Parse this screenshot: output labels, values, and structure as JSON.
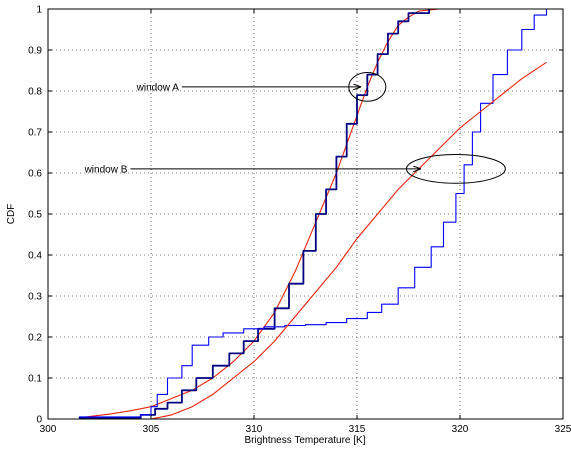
{
  "chart_data": {
    "type": "line",
    "title": "",
    "xlabel": "Brightness Temperature [K]",
    "ylabel": "CDF",
    "xlim": [
      300,
      325
    ],
    "ylim": [
      0,
      1
    ],
    "x_ticks": [
      300,
      305,
      310,
      315,
      320,
      325
    ],
    "y_ticks": [
      0,
      0.1,
      0.2,
      0.3,
      0.4,
      0.5,
      0.6,
      0.7,
      0.8,
      0.9,
      1
    ],
    "x_tick_labels": [
      "300",
      "305",
      "310",
      "315",
      "320",
      "325"
    ],
    "y_tick_labels": [
      "0",
      "0.1",
      "0.2",
      "0.3",
      "0.4",
      "0.5",
      "0.6",
      "0.7",
      "0.8",
      "0.9",
      "1"
    ],
    "grid": true,
    "colors": {
      "dark_blue": "#000080",
      "blue": "#0000ff",
      "red": "#e8220a"
    },
    "series": [
      {
        "color": "#e8220a",
        "style": "smooth",
        "x": [
          301.5,
          303,
          304,
          305,
          306,
          307,
          308,
          309,
          310,
          311,
          312,
          313,
          313.5,
          314,
          314.5,
          315,
          315.5,
          316,
          316.5,
          317,
          317.5,
          318,
          319
        ],
        "y": [
          0.003,
          0.012,
          0.02,
          0.03,
          0.05,
          0.07,
          0.1,
          0.14,
          0.19,
          0.26,
          0.36,
          0.48,
          0.54,
          0.6,
          0.67,
          0.74,
          0.81,
          0.87,
          0.92,
          0.96,
          0.98,
          0.995,
          1.0
        ]
      },
      {
        "color": "#000080",
        "style": "step",
        "x": [
          301.5,
          304.5,
          305.2,
          305.8,
          306.5,
          307.2,
          308,
          308.8,
          309.5,
          310.2,
          311,
          311.7,
          312.4,
          313,
          313.5,
          314,
          314.5,
          315,
          315.5,
          316,
          316.5,
          317,
          317.5,
          318.5
        ],
        "y": [
          0.003,
          0.01,
          0.025,
          0.04,
          0.07,
          0.1,
          0.13,
          0.16,
          0.19,
          0.22,
          0.27,
          0.33,
          0.41,
          0.5,
          0.56,
          0.64,
          0.72,
          0.79,
          0.84,
          0.89,
          0.94,
          0.97,
          0.99,
          1.0
        ]
      },
      {
        "color": "#0000ff",
        "style": "step",
        "x": [
          301.5,
          304.5,
          305,
          305.3,
          305.8,
          306.5,
          307,
          307.8,
          308.5,
          309.5,
          310.5,
          311.5,
          312.5,
          313.5,
          314.5,
          315.5,
          316.2,
          317,
          317.8,
          318.6,
          319.2,
          319.8,
          320.2,
          320.6,
          321,
          321.6,
          322.3,
          323,
          323.6,
          324.2
        ],
        "y": [
          0.005,
          0.01,
          0.03,
          0.06,
          0.1,
          0.13,
          0.18,
          0.2,
          0.21,
          0.22,
          0.225,
          0.228,
          0.23,
          0.235,
          0.245,
          0.26,
          0.28,
          0.32,
          0.37,
          0.42,
          0.48,
          0.55,
          0.62,
          0.7,
          0.77,
          0.84,
          0.9,
          0.95,
          0.985,
          1.0
        ]
      },
      {
        "color": "#e8220a",
        "style": "smooth",
        "x": [
          305,
          306,
          307,
          308,
          309,
          310,
          311,
          312,
          313,
          314,
          315,
          316,
          317,
          318,
          319,
          320,
          321,
          322,
          323,
          324.2
        ],
        "y": [
          0.0,
          0.01,
          0.03,
          0.06,
          0.1,
          0.14,
          0.19,
          0.25,
          0.31,
          0.37,
          0.44,
          0.5,
          0.56,
          0.61,
          0.66,
          0.71,
          0.75,
          0.79,
          0.83,
          0.87
        ]
      }
    ],
    "annotations": [
      {
        "text": "window A",
        "from": [
          306.5,
          0.81
        ],
        "to": [
          315.2,
          0.81
        ],
        "ellipse": {
          "cx": 315.5,
          "cy": 0.81,
          "rx": 0.9,
          "ry": 0.035
        }
      },
      {
        "text": "window B",
        "from": [
          304.0,
          0.61
        ],
        "to": [
          318.1,
          0.61
        ],
        "ellipse": {
          "cx": 319.8,
          "cy": 0.61,
          "rx": 2.4,
          "ry": 0.035
        }
      }
    ]
  }
}
